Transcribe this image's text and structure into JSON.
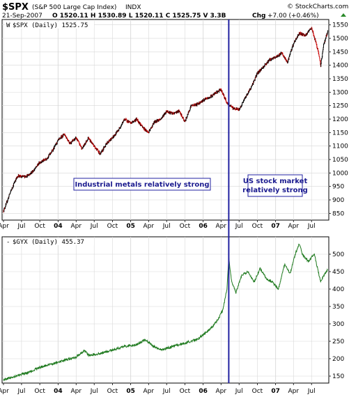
{
  "header": {
    "symbol": "$SPX",
    "description": "(S&P 500 Large Cap Index)",
    "exchange": "INDX",
    "date": "21-Sep-2007",
    "ohlc_text": "O 1520.11  H 1530.89  L 1520.11  C 1525.75  V 3.3B",
    "change_label": "Chg",
    "change_value": "+7.00 (+0.46%)",
    "watermark": "© StockCharts.com"
  },
  "colors": {
    "spx_up": "#000000",
    "spx_down": "#cc0000",
    "gyx_line": "#1f7a1f",
    "marker_line": "#2020a0",
    "annotation_border": "#2020a0",
    "annotation_text": "#1b1b8f",
    "grid": "#d8d8d8",
    "arrow": "#2a8a2a"
  },
  "chart_data": [
    {
      "type": "line",
      "title": "$SPX (Daily) 1525.75",
      "legend_marker": "W",
      "series": [
        {
          "name": "$SPX (Daily) 1525.75",
          "x": [
            "2003-04-01",
            "2003-04-15",
            "2003-05-01",
            "2003-06-01",
            "2003-06-15",
            "2003-07-01",
            "2003-08-01",
            "2003-09-01",
            "2003-10-01",
            "2003-11-01",
            "2003-12-01",
            "2004-01-01",
            "2004-02-01",
            "2004-03-01",
            "2004-04-01",
            "2004-05-01",
            "2004-06-01",
            "2004-07-01",
            "2004-08-01",
            "2004-09-01",
            "2004-10-01",
            "2004-11-01",
            "2004-12-01",
            "2005-01-01",
            "2005-02-01",
            "2005-03-01",
            "2005-04-01",
            "2005-05-01",
            "2005-06-01",
            "2005-07-01",
            "2005-08-01",
            "2005-09-01",
            "2005-10-01",
            "2005-11-01",
            "2005-12-01",
            "2006-01-01",
            "2006-02-01",
            "2006-03-01",
            "2006-04-01",
            "2006-05-01",
            "2006-06-01",
            "2006-07-01",
            "2006-08-01",
            "2006-09-01",
            "2006-10-01",
            "2006-11-01",
            "2006-12-01",
            "2007-01-01",
            "2007-02-01",
            "2007-03-01",
            "2007-04-01",
            "2007-05-01",
            "2007-06-01",
            "2007-07-01",
            "2007-08-01",
            "2007-08-16",
            "2007-09-01",
            "2007-09-21"
          ],
          "values": [
            860,
            885,
            920,
            975,
            990,
            985,
            990,
            1010,
            1040,
            1050,
            1080,
            1120,
            1145,
            1110,
            1130,
            1090,
            1130,
            1100,
            1070,
            1110,
            1130,
            1160,
            1200,
            1185,
            1200,
            1170,
            1150,
            1190,
            1200,
            1230,
            1220,
            1230,
            1190,
            1250,
            1255,
            1270,
            1280,
            1295,
            1310,
            1260,
            1240,
            1235,
            1280,
            1320,
            1370,
            1395,
            1420,
            1430,
            1445,
            1410,
            1480,
            1520,
            1510,
            1540,
            1460,
            1400,
            1480,
            1525.75
          ]
        }
      ],
      "y_ticks": [
        850,
        900,
        950,
        1000,
        1050,
        1100,
        1150,
        1200,
        1250,
        1300,
        1350,
        1400,
        1450,
        1500,
        1550
      ],
      "ylim": [
        825,
        1570
      ],
      "x_tick_labels": [
        "Apr",
        "Jul",
        "Oct",
        "04",
        "Apr",
        "Jul",
        "Oct",
        "05",
        "Apr",
        "Jul",
        "Oct",
        "06",
        "Apr",
        "Jul",
        "Oct",
        "07",
        "Apr",
        "Jul"
      ],
      "xlim": [
        "2003-03-25",
        "2007-09-26"
      ],
      "annotations": [
        {
          "text": "Industrial metals relatively strong",
          "x": "2005-02-01",
          "y": 935
        },
        {
          "text": "US stock market relatively strong",
          "x": "2007-01-15",
          "y": 935
        }
      ],
      "vertical_marker": "2006-05-10",
      "grid": true
    },
    {
      "type": "line",
      "title": "$GYX (Daily) 455.37",
      "legend_marker": "-",
      "series": [
        {
          "name": "$GYX (Daily) 455.37",
          "x": [
            "2003-04-01",
            "2003-06-01",
            "2003-08-01",
            "2003-10-01",
            "2003-12-01",
            "2004-02-01",
            "2004-04-01",
            "2004-05-15",
            "2004-06-01",
            "2004-08-01",
            "2004-10-01",
            "2004-12-01",
            "2005-02-01",
            "2005-03-15",
            "2005-04-15",
            "2005-06-01",
            "2005-08-01",
            "2005-10-01",
            "2005-12-01",
            "2006-01-15",
            "2006-02-15",
            "2006-03-15",
            "2006-04-10",
            "2006-05-01",
            "2006-05-10",
            "2006-05-25",
            "2006-06-15",
            "2006-07-15",
            "2006-08-15",
            "2006-09-15",
            "2006-10-15",
            "2006-11-15",
            "2006-12-15",
            "2007-01-15",
            "2007-02-15",
            "2007-03-15",
            "2007-04-10",
            "2007-05-01",
            "2007-05-15",
            "2007-06-15",
            "2007-07-15",
            "2007-08-16",
            "2007-09-01",
            "2007-09-21"
          ],
          "values": [
            140,
            150,
            160,
            175,
            185,
            195,
            205,
            225,
            210,
            215,
            225,
            235,
            240,
            255,
            240,
            225,
            235,
            245,
            255,
            275,
            290,
            310,
            340,
            400,
            490,
            420,
            390,
            440,
            450,
            420,
            460,
            430,
            420,
            400,
            470,
            445,
            500,
            530,
            500,
            480,
            500,
            420,
            440,
            455.37
          ]
        }
      ],
      "y_ticks": [
        150,
        200,
        250,
        300,
        350,
        400,
        450,
        500
      ],
      "ylim": [
        130,
        550
      ],
      "x_tick_labels": [
        "Apr",
        "Jul",
        "Oct",
        "04",
        "Apr",
        "Jul",
        "Oct",
        "05",
        "Apr",
        "Jul",
        "Oct",
        "06",
        "Apr",
        "Jul",
        "Oct",
        "07",
        "Apr",
        "Jul"
      ],
      "xlim": [
        "2003-03-25",
        "2007-09-26"
      ],
      "vertical_marker": "2006-05-10",
      "grid": true
    }
  ]
}
